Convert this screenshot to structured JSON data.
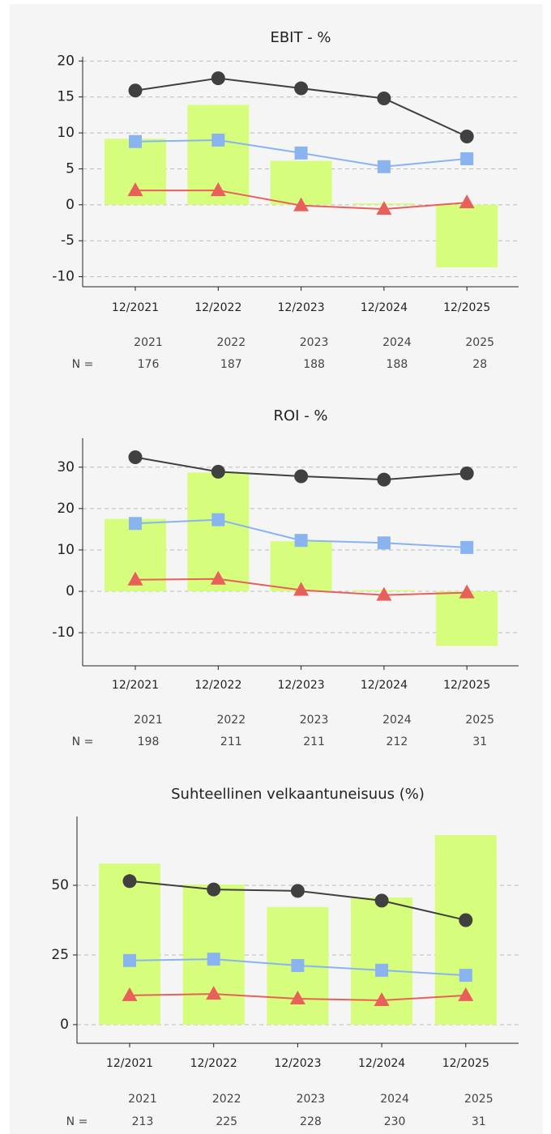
{
  "charts": [
    {
      "type": "bar_line",
      "title": "EBIT - %",
      "categories": [
        "12/2021",
        "12/2022",
        "12/2023",
        "12/2024",
        "12/2025"
      ],
      "values": [
        9.2,
        13.9,
        6.1,
        0.2,
        -8.7
      ],
      "color": "#d6fd7b",
      "series": [
        {
          "color": "#404040",
          "marker": "circle",
          "values": [
            15.9,
            17.6,
            16.2,
            14.8,
            9.5
          ]
        },
        {
          "color": "#8ab4f0",
          "marker": "square",
          "values": [
            8.8,
            9.0,
            7.2,
            5.3,
            6.4
          ]
        },
        {
          "color": "#e8605a",
          "marker": "triangle",
          "values": [
            2.0,
            2.0,
            -0.1,
            -0.6,
            0.3
          ]
        }
      ],
      "ylim": [
        -11.4,
        20.6
      ],
      "yticks": [
        20,
        15,
        10,
        5,
        0,
        -5,
        -10
      ],
      "grid": true,
      "table": {
        "label": "N =",
        "years": [
          "2021",
          "2022",
          "2023",
          "2024",
          "2025"
        ],
        "counts": [
          176,
          187,
          188,
          188,
          28
        ]
      }
    },
    {
      "type": "bar_line",
      "title": "ROI - %",
      "categories": [
        "12/2021",
        "12/2022",
        "12/2023",
        "12/2024",
        "12/2025"
      ],
      "values": [
        17.5,
        28.7,
        12.1,
        0.3,
        -13.2
      ],
      "color": "#d6fd7b",
      "series": [
        {
          "color": "#404040",
          "marker": "circle",
          "values": [
            32.4,
            28.9,
            27.8,
            27.0,
            28.5
          ]
        },
        {
          "color": "#8ab4f0",
          "marker": "square",
          "values": [
            16.4,
            17.3,
            12.3,
            11.7,
            10.6
          ]
        },
        {
          "color": "#e8605a",
          "marker": "triangle",
          "values": [
            2.8,
            3.0,
            0.3,
            -0.9,
            -0.3
          ]
        }
      ],
      "ylim": [
        -18,
        37
      ],
      "yticks": [
        30,
        20,
        10,
        0,
        -10
      ],
      "grid": true,
      "table": {
        "label": "N =",
        "years": [
          "2021",
          "2022",
          "2023",
          "2024",
          "2025"
        ],
        "counts": [
          198,
          211,
          211,
          212,
          31
        ]
      }
    },
    {
      "type": "bar_line",
      "title": "Suhteellinen velkaantuneisuus (%)",
      "categories": [
        "12/2021",
        "12/2022",
        "12/2023",
        "12/2024",
        "12/2025"
      ],
      "values": [
        57.8,
        50.3,
        42.2,
        45.6,
        68.0
      ],
      "color": "#d6fd7b",
      "series": [
        {
          "color": "#404040",
          "marker": "circle",
          "values": [
            51.5,
            48.5,
            48.0,
            44.5,
            37.5
          ]
        },
        {
          "color": "#8ab4f0",
          "marker": "square",
          "values": [
            23.0,
            23.5,
            21.2,
            19.5,
            17.7
          ]
        },
        {
          "color": "#e8605a",
          "marker": "triangle",
          "values": [
            10.5,
            11.0,
            9.3,
            8.7,
            10.5
          ]
        }
      ],
      "ylim": [
        -6.7,
        74.7
      ],
      "yticks": [
        0,
        25,
        50
      ],
      "grid": true,
      "table": {
        "label": "N =",
        "years": [
          "2021",
          "2022",
          "2023",
          "2024",
          "2025"
        ],
        "counts": [
          213,
          225,
          228,
          230,
          31
        ]
      }
    }
  ]
}
